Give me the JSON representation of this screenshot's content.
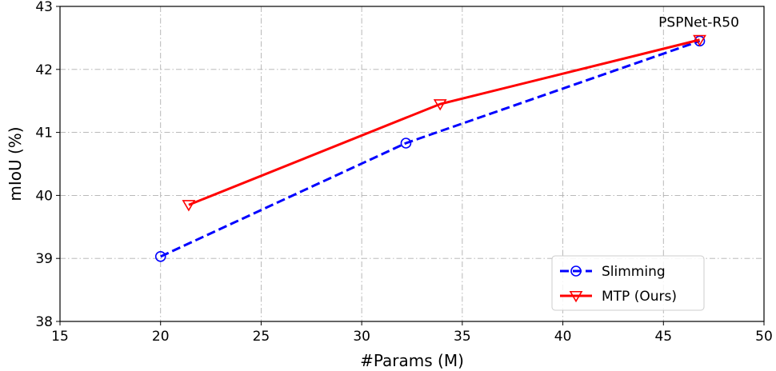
{
  "chart_data": {
    "type": "line",
    "xlabel": "#Params (M)",
    "ylabel": "mIoU (%)",
    "xlim": [
      15,
      50
    ],
    "ylim": [
      38,
      43
    ],
    "xticks": [
      15,
      20,
      25,
      30,
      35,
      40,
      45,
      50
    ],
    "yticks": [
      38,
      39,
      40,
      41,
      42,
      43
    ],
    "grid": true,
    "legend_position": "bottom-right",
    "series": [
      {
        "name": "Slimming",
        "color": "#0000ff",
        "line_style": "dashed",
        "marker": "circle",
        "x": [
          20.0,
          32.2,
          46.8
        ],
        "y": [
          39.03,
          40.83,
          42.45
        ]
      },
      {
        "name": "MTP (Ours)",
        "color": "#ff0000",
        "line_style": "solid",
        "marker": "triangle-down",
        "x": [
          21.4,
          33.9,
          46.8
        ],
        "y": [
          39.85,
          41.45,
          42.47
        ]
      }
    ],
    "annotations": [
      {
        "text": "PSPNet-R50",
        "x": 46.8,
        "y": 42.45
      }
    ]
  }
}
